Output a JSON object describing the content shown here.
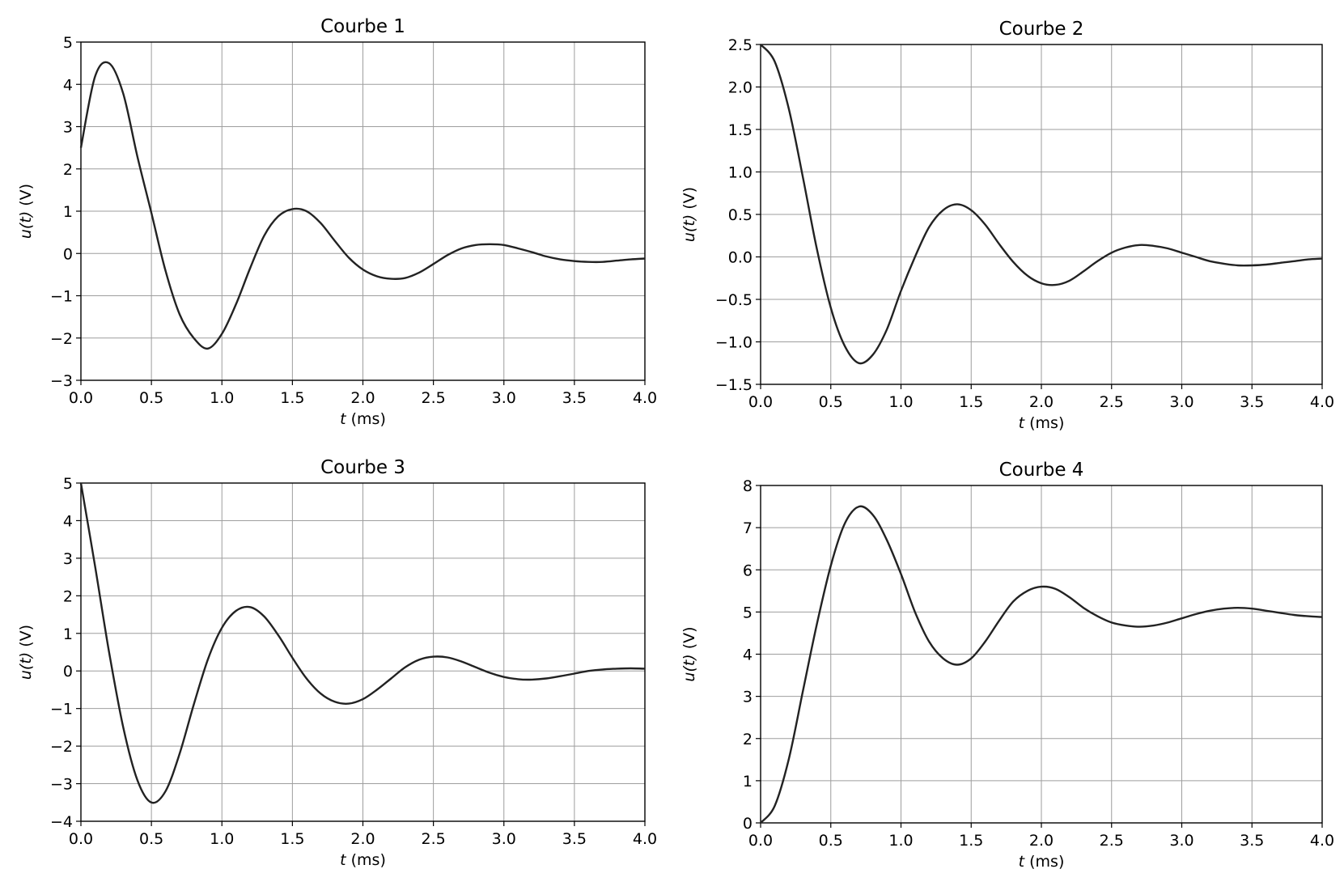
{
  "chart_data": [
    {
      "type": "line",
      "title": "Courbe 1",
      "xlabel_var": "t",
      "xlabel_unit": " (ms)",
      "ylabel_var": "u(t)",
      "ylabel_unit": " (V)",
      "xlim": [
        0,
        4
      ],
      "ylim": [
        -3,
        5
      ],
      "xticks": [
        0,
        0.5,
        1,
        1.5,
        2,
        2.5,
        3,
        3.5,
        4
      ],
      "xtick_labels": [
        "0.0",
        "0.5",
        "1.0",
        "1.5",
        "2.0",
        "2.5",
        "3.0",
        "3.5",
        "4.0"
      ],
      "yticks": [
        -3,
        -2,
        -1,
        0,
        1,
        2,
        3,
        4,
        5
      ],
      "ytick_labels": [
        "−3",
        "−2",
        "−1",
        "0",
        "1",
        "2",
        "3",
        "4",
        "5"
      ],
      "grid": true,
      "x": [
        0,
        0.1,
        0.2,
        0.3,
        0.4,
        0.5,
        0.6,
        0.7,
        0.8,
        0.9,
        1.0,
        1.1,
        1.2,
        1.3,
        1.4,
        1.5,
        1.6,
        1.7,
        1.8,
        1.9,
        2.0,
        2.1,
        2.2,
        2.3,
        2.4,
        2.5,
        2.6,
        2.7,
        2.8,
        2.9,
        3.0,
        3.1,
        3.2,
        3.3,
        3.4,
        3.5,
        3.6,
        3.7,
        3.8,
        3.9,
        4.0
      ],
      "y": [
        2.5,
        4.18,
        4.5,
        3.78,
        2.3,
        0.96,
        -0.41,
        -1.44,
        -2.0,
        -2.25,
        -1.9,
        -1.2,
        -0.35,
        0.42,
        0.88,
        1.05,
        1.0,
        0.72,
        0.3,
        -0.1,
        -0.38,
        -0.54,
        -0.6,
        -0.58,
        -0.45,
        -0.25,
        -0.04,
        0.12,
        0.2,
        0.22,
        0.2,
        0.12,
        0.03,
        -0.07,
        -0.14,
        -0.18,
        -0.2,
        -0.2,
        -0.17,
        -0.14,
        -0.12
      ]
    },
    {
      "type": "line",
      "title": "Courbe 2",
      "xlabel_var": "t",
      "xlabel_unit": " (ms)",
      "ylabel_var": "u(t)",
      "ylabel_unit": " (V)",
      "xlim": [
        0,
        4
      ],
      "ylim": [
        -1.5,
        2.5
      ],
      "xticks": [
        0,
        0.5,
        1,
        1.5,
        2,
        2.5,
        3,
        3.5,
        4
      ],
      "xtick_labels": [
        "0.0",
        "0.5",
        "1.0",
        "1.5",
        "2.0",
        "2.5",
        "3.0",
        "3.5",
        "4.0"
      ],
      "yticks": [
        -1.5,
        -1,
        -0.5,
        0,
        0.5,
        1,
        1.5,
        2,
        2.5
      ],
      "ytick_labels": [
        "−1.5",
        "−1.0",
        "−0.5",
        "0.0",
        "0.5",
        "1.0",
        "1.5",
        "2.0",
        "2.5"
      ],
      "grid": true,
      "x": [
        0,
        0.1,
        0.2,
        0.3,
        0.4,
        0.5,
        0.6,
        0.7,
        0.8,
        0.9,
        1.0,
        1.1,
        1.2,
        1.3,
        1.4,
        1.5,
        1.6,
        1.7,
        1.8,
        1.9,
        2.0,
        2.1,
        2.2,
        2.3,
        2.4,
        2.5,
        2.6,
        2.7,
        2.8,
        2.9,
        3.0,
        3.1,
        3.2,
        3.3,
        3.4,
        3.5,
        3.6,
        3.7,
        3.8,
        3.9,
        4.0
      ],
      "y": [
        2.5,
        2.3,
        1.75,
        0.95,
        0.1,
        -0.6,
        -1.05,
        -1.25,
        -1.15,
        -0.85,
        -0.4,
        0.0,
        0.35,
        0.55,
        0.62,
        0.55,
        0.38,
        0.15,
        -0.06,
        -0.22,
        -0.31,
        -0.33,
        -0.28,
        -0.17,
        -0.05,
        0.05,
        0.11,
        0.14,
        0.13,
        0.1,
        0.05,
        0.0,
        -0.05,
        -0.08,
        -0.1,
        -0.1,
        -0.09,
        -0.07,
        -0.05,
        -0.03,
        -0.02
      ]
    },
    {
      "type": "line",
      "title": "Courbe 3",
      "xlabel_var": "t",
      "xlabel_unit": " (ms)",
      "ylabel_var": "u(t)",
      "ylabel_unit": " (V)",
      "xlim": [
        0,
        4
      ],
      "ylim": [
        -4,
        5
      ],
      "xticks": [
        0,
        0.5,
        1,
        1.5,
        2,
        2.5,
        3,
        3.5,
        4
      ],
      "xtick_labels": [
        "0.0",
        "0.5",
        "1.0",
        "1.5",
        "2.0",
        "2.5",
        "3.0",
        "3.5",
        "4.0"
      ],
      "yticks": [
        -4,
        -3,
        -2,
        -1,
        0,
        1,
        2,
        3,
        4,
        5
      ],
      "ytick_labels": [
        "−4",
        "−3",
        "−2",
        "−1",
        "0",
        "1",
        "2",
        "3",
        "4",
        "5"
      ],
      "grid": true,
      "x": [
        0,
        0.1,
        0.2,
        0.3,
        0.4,
        0.5,
        0.6,
        0.7,
        0.8,
        0.9,
        1.0,
        1.1,
        1.2,
        1.3,
        1.4,
        1.5,
        1.6,
        1.7,
        1.8,
        1.9,
        2.0,
        2.1,
        2.2,
        2.3,
        2.4,
        2.5,
        2.6,
        2.7,
        2.8,
        2.9,
        3.0,
        3.1,
        3.2,
        3.3,
        3.4,
        3.5,
        3.6,
        3.7,
        3.8,
        3.9,
        4.0
      ],
      "y": [
        5.0,
        2.8,
        0.5,
        -1.5,
        -2.9,
        -3.5,
        -3.2,
        -2.2,
        -0.9,
        0.3,
        1.15,
        1.6,
        1.7,
        1.45,
        0.95,
        0.35,
        -0.2,
        -0.6,
        -0.82,
        -0.87,
        -0.75,
        -0.5,
        -0.2,
        0.1,
        0.3,
        0.38,
        0.36,
        0.25,
        0.1,
        -0.05,
        -0.16,
        -0.22,
        -0.23,
        -0.2,
        -0.14,
        -0.07,
        0.0,
        0.04,
        0.06,
        0.07,
        0.06
      ]
    },
    {
      "type": "line",
      "title": "Courbe 4",
      "xlabel_var": "t",
      "xlabel_unit": " (ms)",
      "ylabel_var": "u(t)",
      "ylabel_unit": " (V)",
      "xlim": [
        0,
        4
      ],
      "ylim": [
        0,
        8
      ],
      "xticks": [
        0,
        0.5,
        1,
        1.5,
        2,
        2.5,
        3,
        3.5,
        4
      ],
      "xtick_labels": [
        "0.0",
        "0.5",
        "1.0",
        "1.5",
        "2.0",
        "2.5",
        "3.0",
        "3.5",
        "4.0"
      ],
      "yticks": [
        0,
        1,
        2,
        3,
        4,
        5,
        6,
        7,
        8
      ],
      "ytick_labels": [
        "0",
        "1",
        "2",
        "3",
        "4",
        "5",
        "6",
        "7",
        "8"
      ],
      "grid": true,
      "x": [
        0,
        0.1,
        0.2,
        0.3,
        0.4,
        0.5,
        0.6,
        0.7,
        0.8,
        0.9,
        1.0,
        1.1,
        1.2,
        1.3,
        1.4,
        1.5,
        1.6,
        1.7,
        1.8,
        1.9,
        2.0,
        2.1,
        2.2,
        2.3,
        2.4,
        2.5,
        2.6,
        2.7,
        2.8,
        2.9,
        3.0,
        3.1,
        3.2,
        3.3,
        3.4,
        3.5,
        3.6,
        3.7,
        3.8,
        3.9,
        4.0
      ],
      "y": [
        0.0,
        0.4,
        1.5,
        3.1,
        4.7,
        6.1,
        7.1,
        7.5,
        7.3,
        6.7,
        5.9,
        5.0,
        4.3,
        3.9,
        3.75,
        3.9,
        4.3,
        4.8,
        5.25,
        5.5,
        5.6,
        5.55,
        5.35,
        5.1,
        4.9,
        4.75,
        4.68,
        4.65,
        4.68,
        4.75,
        4.85,
        4.95,
        5.03,
        5.08,
        5.1,
        5.08,
        5.03,
        4.98,
        4.93,
        4.9,
        4.88
      ]
    }
  ]
}
